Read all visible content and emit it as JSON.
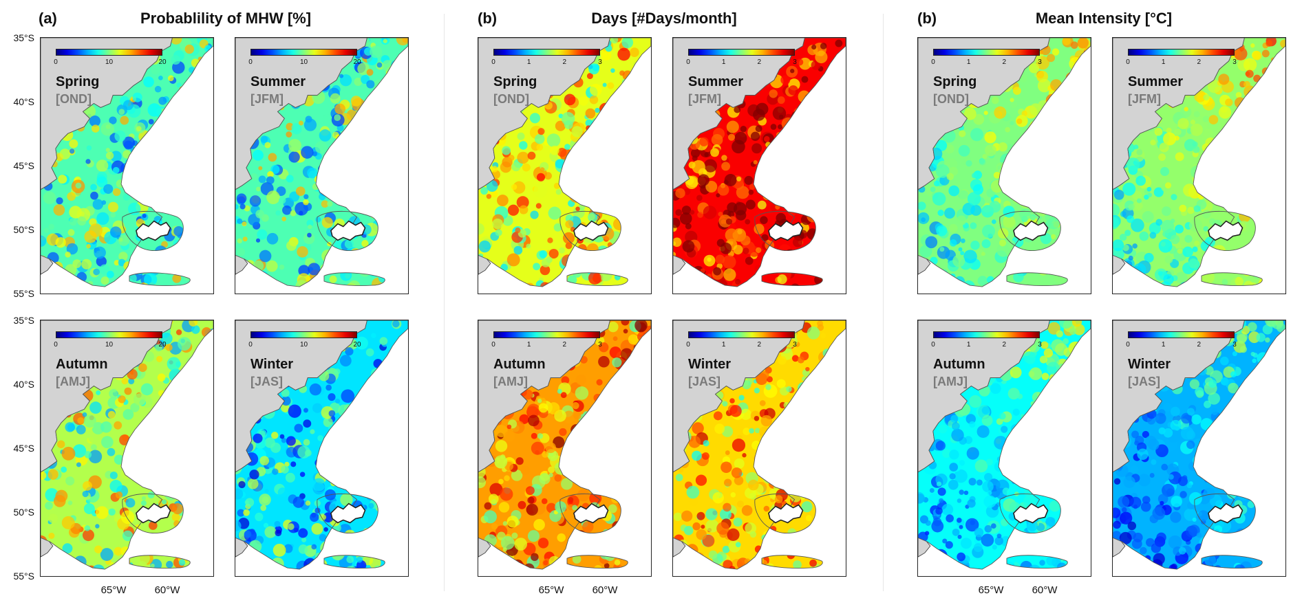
{
  "groups": [
    {
      "letter": "(a)",
      "title": "Probablility of MHW [%]",
      "cbar_ticks": [
        "0",
        "10",
        "20"
      ],
      "palette": "jet",
      "panels": [
        {
          "season": "Spring",
          "months": "[OND]",
          "mean_level": 0.45
        },
        {
          "season": "Summer",
          "months": "[JFM]",
          "mean_level": 0.45
        },
        {
          "season": "Autumn",
          "months": "[AMJ]",
          "mean_level": 0.55
        },
        {
          "season": "Winter",
          "months": "[JAS]",
          "mean_level": 0.35
        }
      ]
    },
    {
      "letter": "(b)",
      "title": "Days [#Days/month]",
      "cbar_ticks": [
        "0",
        "1",
        "2",
        "3"
      ],
      "palette": "jet",
      "panels": [
        {
          "season": "Spring",
          "months": "[OND]",
          "mean_level": 0.6
        },
        {
          "season": "Summer",
          "months": "[JFM]",
          "mean_level": 0.88
        },
        {
          "season": "Autumn",
          "months": "[AMJ]",
          "mean_level": 0.72
        },
        {
          "season": "Winter",
          "months": "[JAS]",
          "mean_level": 0.66
        }
      ]
    },
    {
      "letter": "(b)",
      "title": "Mean Intensity [°C]",
      "cbar_ticks": [
        "0",
        "1",
        "2",
        "3"
      ],
      "palette": "jet",
      "panels": [
        {
          "season": "Spring",
          "months": "[OND]",
          "mean_level": 0.5
        },
        {
          "season": "Summer",
          "months": "[JFM]",
          "mean_level": 0.52
        },
        {
          "season": "Autumn",
          "months": "[AMJ]",
          "mean_level": 0.38
        },
        {
          "season": "Winter",
          "months": "[JAS]",
          "mean_level": 0.3
        }
      ]
    }
  ],
  "lat_labels": [
    "35°S",
    "40°S",
    "45°S",
    "50°S",
    "55°S"
  ],
  "lon_labels": [
    "65°W",
    "60°W"
  ],
  "colors": {
    "land": "#d3d3d3",
    "ocean": "#ffffff",
    "frame": "#222222",
    "coast": "#333333"
  }
}
